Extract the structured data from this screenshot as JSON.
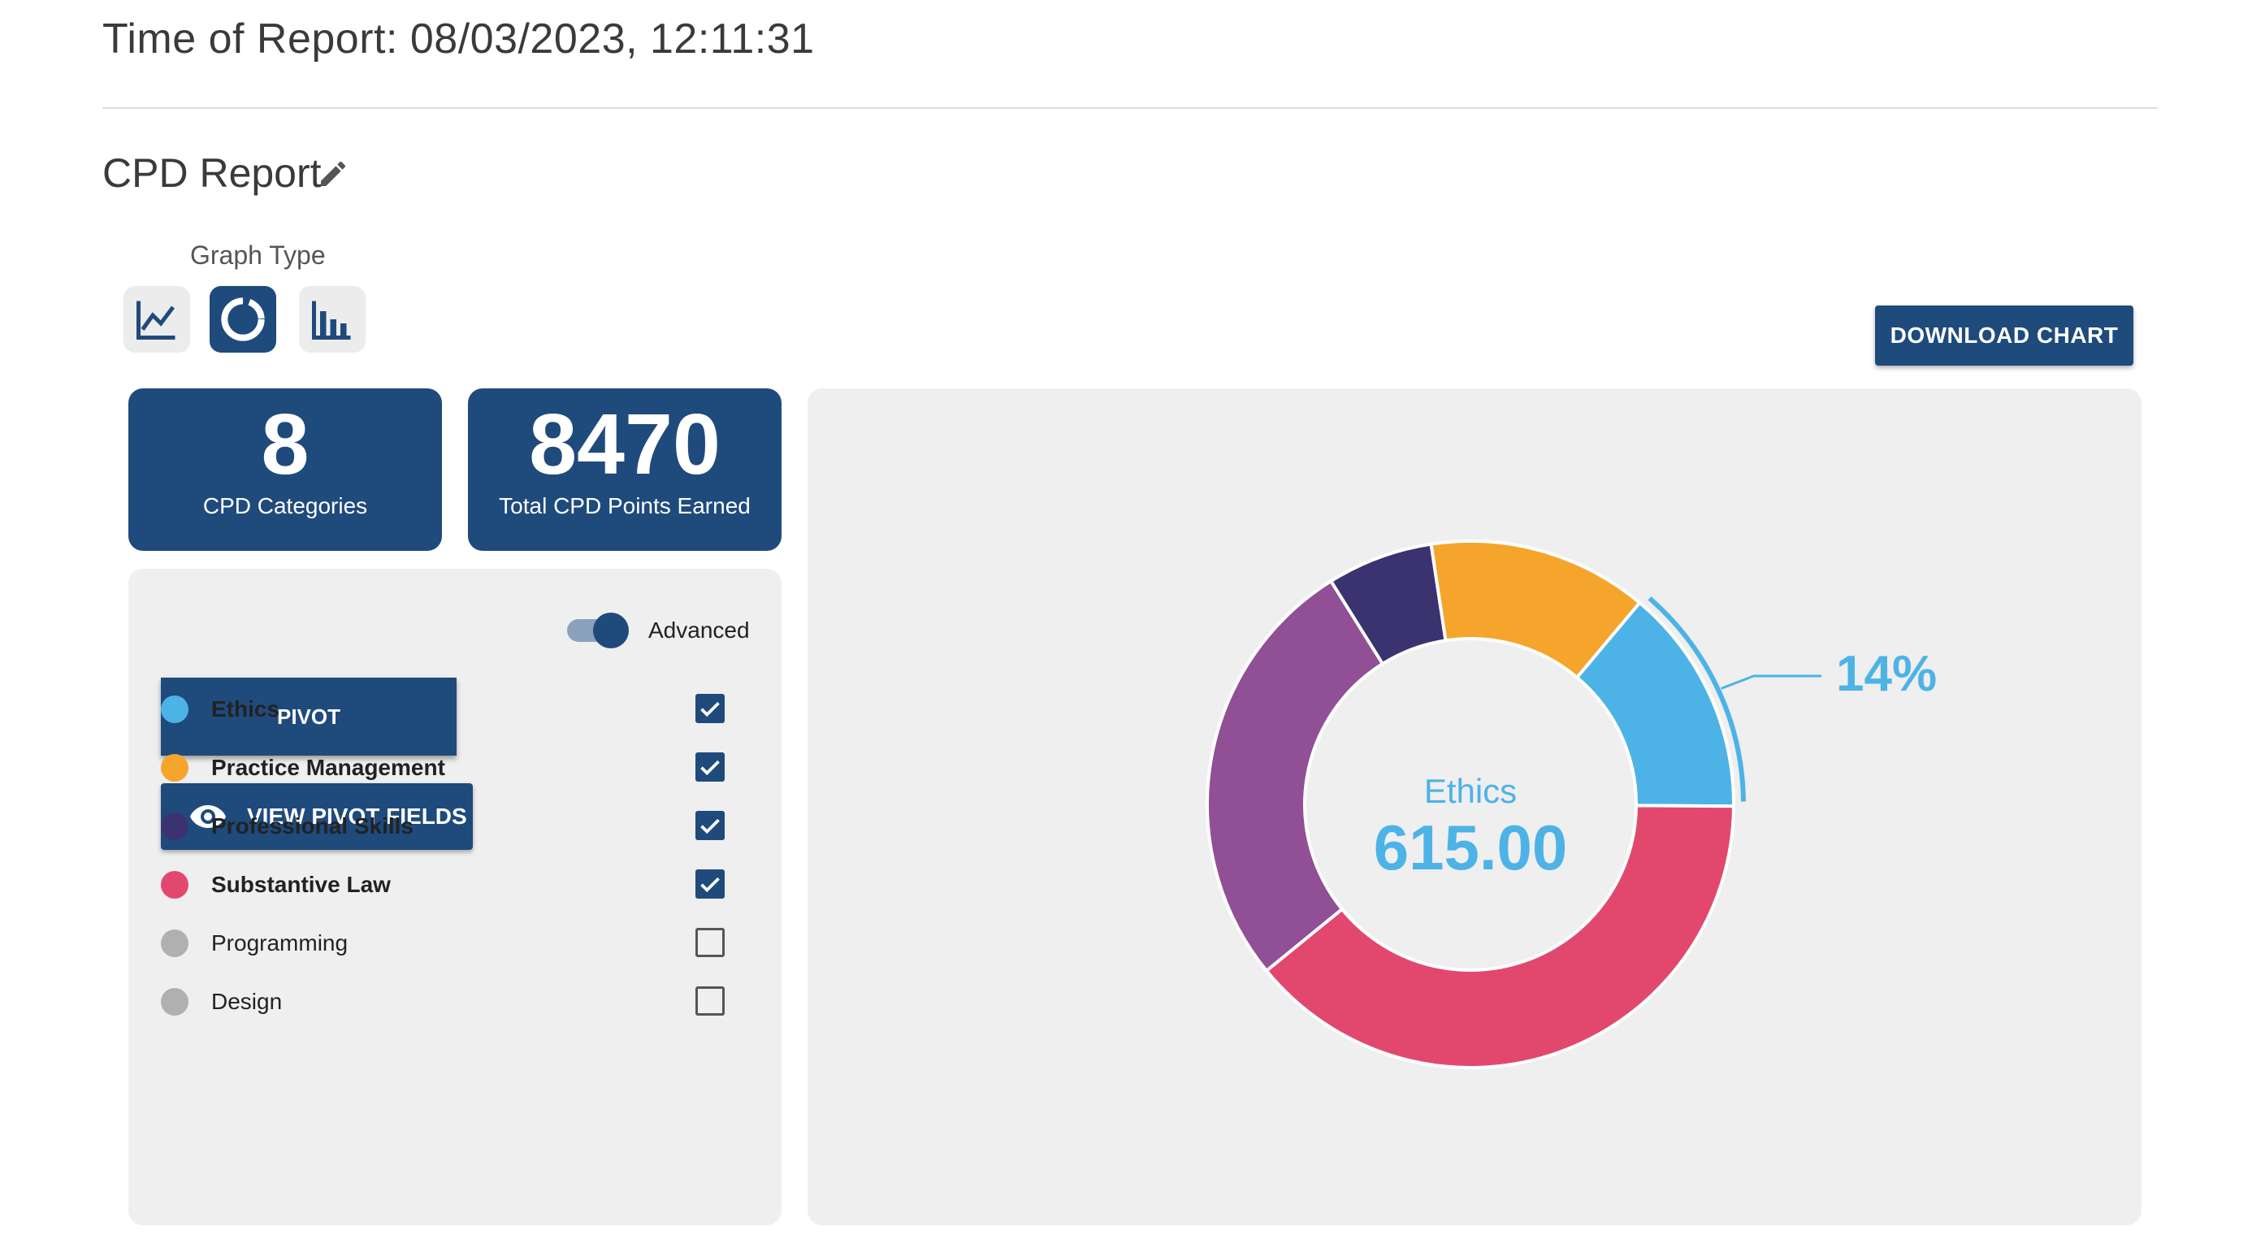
{
  "report": {
    "time_label": "Time of Report: 08/03/2023, 12:11:31",
    "title": "CPD Report"
  },
  "graph_type": {
    "label": "Graph Type",
    "options": [
      "line",
      "donut",
      "bar"
    ],
    "selected": "donut"
  },
  "download_button": "DOWNLOAD CHART",
  "stats": [
    {
      "value": "8",
      "label": "CPD Categories"
    },
    {
      "value": "8470",
      "label": "Total CPD Points Earned"
    }
  ],
  "controls": {
    "advanced_label": "Advanced",
    "advanced_on": true,
    "pivot_label": "PIVOT",
    "view_pivot_label": "VIEW PIVOT FIELDS"
  },
  "legend": [
    {
      "name": "Ethics",
      "color": "#4db3e6",
      "checked": true
    },
    {
      "name": "Practice Management",
      "color": "#f5a52b",
      "checked": true
    },
    {
      "name": "Professional Skills",
      "color": "#3a3370",
      "checked": true
    },
    {
      "name": "Substantive Law",
      "color": "#e2486e",
      "checked": true
    },
    {
      "name": "Programming",
      "color": "#b0b0b0",
      "checked": false
    },
    {
      "name": "Design",
      "color": "#b0b0b0",
      "checked": false
    }
  ],
  "chart_data": {
    "type": "pie",
    "variant": "donut",
    "highlight": {
      "category": "Ethics",
      "value": "615.00",
      "percent_label": "14%"
    },
    "slices": [
      {
        "name": "Ethics",
        "percent": 14,
        "color": "#4db3e6"
      },
      {
        "name": "Substantive Law",
        "percent": 39,
        "color": "#e2486e"
      },
      {
        "name": "",
        "percent": 27,
        "color": "#914f96"
      },
      {
        "name": "Professional Skills",
        "percent": 6.5,
        "color": "#3a3370"
      },
      {
        "name": "Practice Management",
        "percent": 13.5,
        "color": "#f5a52b"
      }
    ]
  },
  "icons": {
    "edit": "pencil-icon",
    "line": "line-chart-icon",
    "donut": "donut-chart-icon",
    "bar": "bar-chart-icon",
    "eye": "eye-icon",
    "check": "checkmark-icon"
  }
}
